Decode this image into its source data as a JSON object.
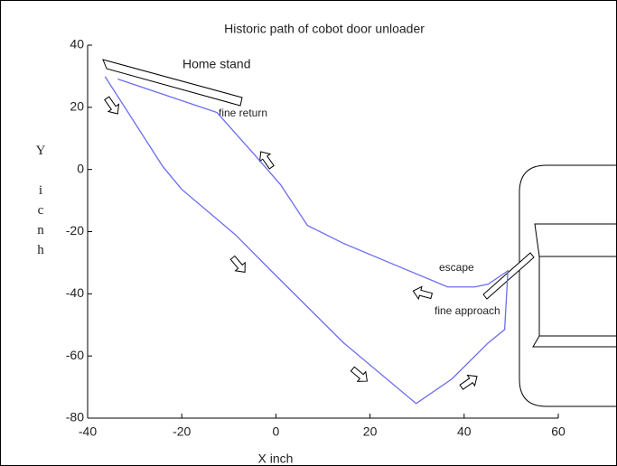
{
  "chart_data": {
    "type": "line",
    "title": "Historic path of cobot door unloader",
    "xlabel": "X   inch",
    "ylabel": "Y icnh",
    "xlim": [
      -40,
      60
    ],
    "ylim": [
      -80,
      40
    ],
    "xticks": [
      -40,
      -20,
      0,
      20,
      40,
      60
    ],
    "yticks": [
      -80,
      -60,
      -40,
      -20,
      0,
      20,
      40
    ],
    "grid": false,
    "annotations": [
      "Home stand",
      "fine return",
      "escape",
      "fine approach"
    ],
    "series": [
      {
        "color": "#6b6cf0",
        "x": [
          -36.3,
          -24,
          -20,
          -8.6,
          -1,
          14.4,
          29.8,
          37.4,
          45.1,
          48.6,
          49.3,
          45.1,
          42.2,
          36.5,
          25.9,
          14.4,
          6.7,
          1,
          -4.8,
          -12.5,
          -15.4,
          -33.6
        ],
        "values": [
          29.9,
          0.9,
          -6.4,
          -21,
          -32.6,
          -55.8,
          -75.3,
          -67.4,
          -55.8,
          -51.5,
          -32.6,
          -36.9,
          -37.8,
          -37.8,
          -31.1,
          -23.8,
          -18,
          -4.9,
          5.2,
          18.3,
          19.8,
          29.1
        ]
      }
    ]
  }
}
